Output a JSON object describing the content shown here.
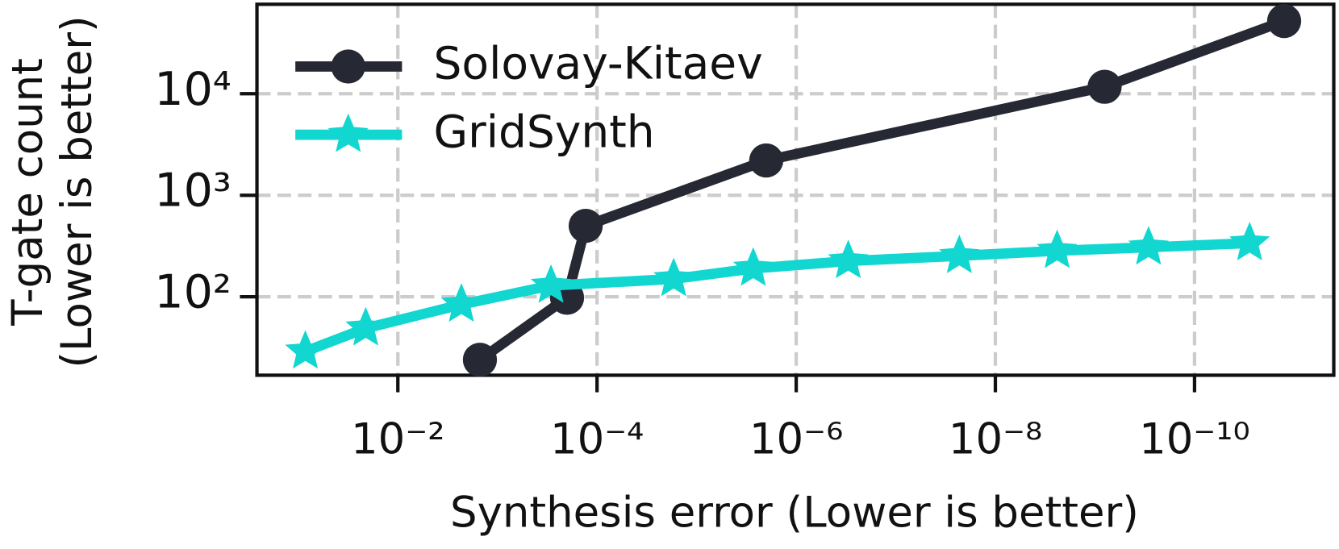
{
  "chart_data": {
    "type": "line",
    "xlabel": "Synthesis error (Lower is better)",
    "ylabel": [
      "T-gate count",
      "(Lower is better)"
    ],
    "xscale": "log",
    "yscale": "log",
    "xlim": [
      0.26,
      4e-12
    ],
    "ylim": [
      16.9,
      76000
    ],
    "xticks": [
      {
        "value": 0.01,
        "label": "10⁻²"
      },
      {
        "value": 0.0001,
        "label": "10⁻⁴"
      },
      {
        "value": 1e-06,
        "label": "10⁻⁶"
      },
      {
        "value": 1e-08,
        "label": "10⁻⁸"
      },
      {
        "value": 1e-10,
        "label": "10⁻¹⁰"
      }
    ],
    "yticks": [
      {
        "value": 100,
        "label": "10²"
      },
      {
        "value": 1000,
        "label": "10³"
      },
      {
        "value": 10000,
        "label": "10⁴"
      }
    ],
    "grid": true,
    "legend": "upper left",
    "series": [
      {
        "name": "Solovay-Kitaev",
        "color": "#262833",
        "marker": "circle",
        "x": [
          0.0015,
          0.0002,
          0.00013,
          2e-06,
          8e-10,
          1.26e-11
        ],
        "values": [
          24,
          98,
          500,
          2200,
          11700,
          52000
        ]
      },
      {
        "name": "GridSynth",
        "color": "#12d6d0",
        "marker": "star",
        "x": [
          0.085,
          0.021,
          0.0023,
          0.00029,
          1.7e-05,
          2.7e-06,
          3e-07,
          2.3e-08,
          2.4e-09,
          2.9e-10,
          2.8e-11
        ],
        "values": [
          29,
          49,
          84,
          129,
          150,
          190,
          225,
          253,
          284,
          307,
          338
        ]
      }
    ]
  }
}
